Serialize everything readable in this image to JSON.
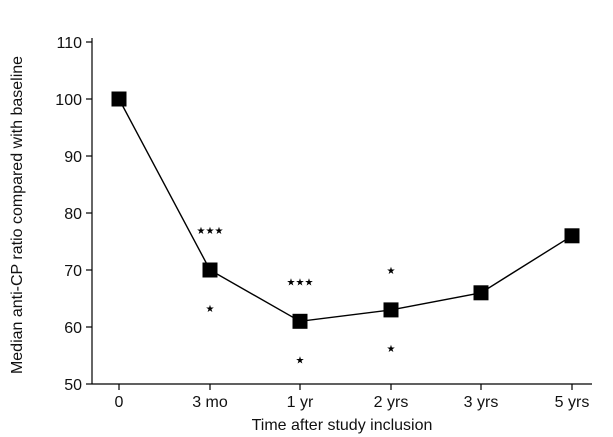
{
  "chart_data": {
    "type": "line",
    "title": "",
    "xlabel": "Time after study inclusion",
    "ylabel": "Median anti-CP ratio compared with baseline",
    "categories": [
      "0",
      "3 mo",
      "1 yr",
      "2 yrs",
      "3 yrs",
      "5 yrs"
    ],
    "values": [
      100,
      70,
      61,
      63,
      66,
      76
    ],
    "ylim": [
      50,
      110
    ],
    "yticks": [
      50,
      60,
      70,
      80,
      90,
      100,
      110
    ],
    "grid": false,
    "legend": "none",
    "marker": "square",
    "annotations": [
      {
        "category": "3 mo",
        "position": "above",
        "text": "★★★"
      },
      {
        "category": "3 mo",
        "position": "below",
        "text": "★"
      },
      {
        "category": "1 yr",
        "position": "above",
        "text": "★★★"
      },
      {
        "category": "1 yr",
        "position": "below",
        "text": "★"
      },
      {
        "category": "2 yrs",
        "position": "above",
        "text": "★"
      },
      {
        "category": "2 yrs",
        "position": "below",
        "text": "★"
      }
    ]
  }
}
